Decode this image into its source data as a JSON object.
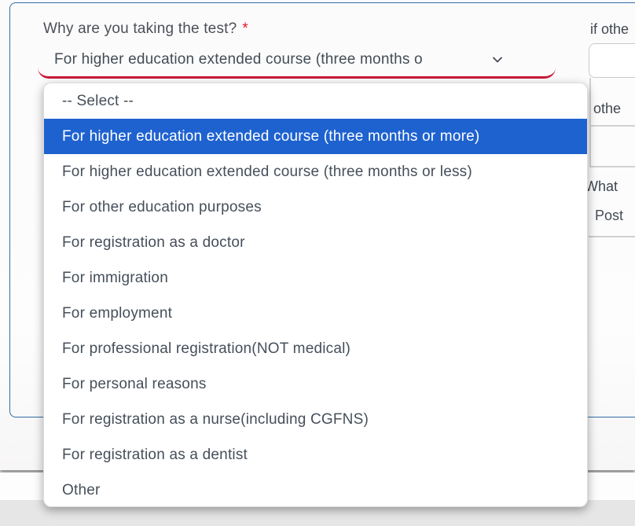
{
  "form": {
    "question": {
      "label": "Why are you taking the test?",
      "required_marker": "*"
    },
    "select": {
      "value": "For higher education extended course (three months o"
    },
    "dropdown": {
      "options": [
        "-- Select --",
        "For higher education extended course (three months or more)",
        "For higher education extended course (three months or less)",
        "For other education purposes",
        "For registration as a doctor",
        "For immigration",
        "For employment",
        "For professional registration(NOT medical)",
        "For personal reasons",
        "For registration as a nurse(including CGFNS)",
        "For registration as a dentist",
        "Other"
      ],
      "selected_index": 1
    },
    "right_column_fragments": {
      "label_top": "if othe",
      "field_text": "othe",
      "label_bottom": "What",
      "value_bottom": "Post"
    }
  },
  "colors": {
    "highlight": "#1e62d0",
    "error_underline": "#c81a38",
    "card_border": "#2f6da5"
  }
}
